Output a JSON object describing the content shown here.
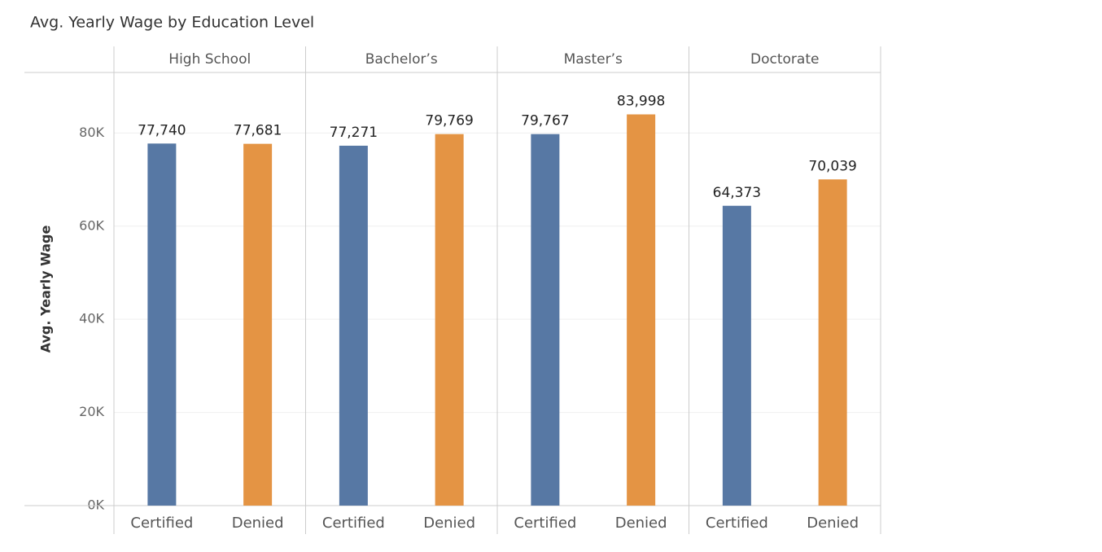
{
  "chart_data": {
    "type": "bar",
    "title": "Avg. Yearly Wage by Education Level",
    "y_label": "Avg. Yearly Wage",
    "categories": [
      "High School",
      "Bachelor’s",
      "Master’s",
      "Doctorate"
    ],
    "series": [
      {
        "name": "Certified",
        "color": "#5778a4",
        "values": [
          77740,
          77271,
          79767,
          64373
        ],
        "value_labels": [
          "77,740",
          "77,271",
          "79,767",
          "64,373"
        ]
      },
      {
        "name": "Denied",
        "color": "#e49444",
        "values": [
          77681,
          79769,
          83998,
          70039
        ],
        "value_labels": [
          "77,681",
          "79,769",
          "83,998",
          "70,039"
        ]
      }
    ],
    "ylim": [
      0,
      93000
    ],
    "yticks": [
      {
        "value": 0,
        "label": "0K"
      },
      {
        "value": 20000,
        "label": "20K"
      },
      {
        "value": 40000,
        "label": "40K"
      },
      {
        "value": 60000,
        "label": "60K"
      },
      {
        "value": 80000,
        "label": "80K"
      }
    ],
    "grid": true
  }
}
